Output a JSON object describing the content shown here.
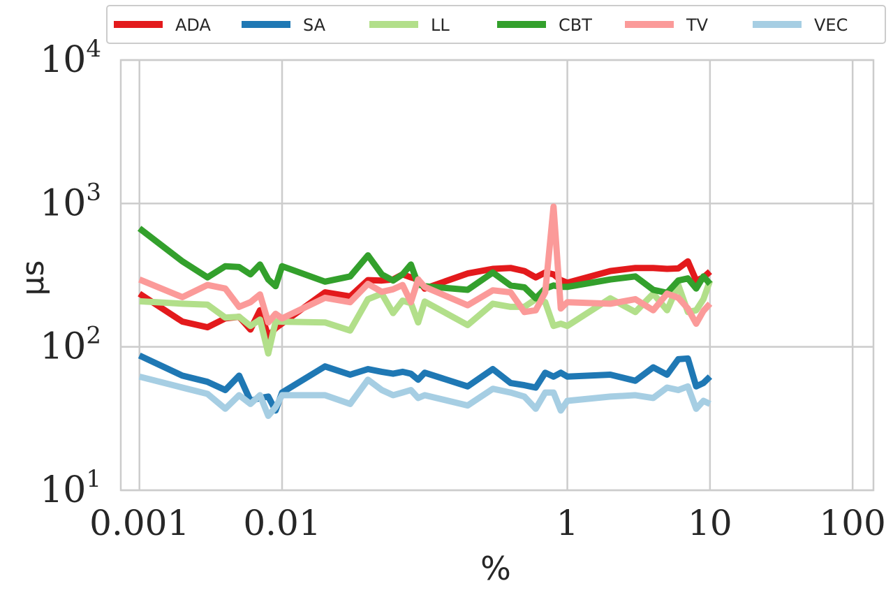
{
  "chart_data": {
    "type": "line",
    "title": "",
    "xlabel": "%",
    "ylabel": "µs",
    "x_scale": "log",
    "y_scale": "log",
    "xlim": [
      0.00074,
      140
    ],
    "ylim": [
      10,
      10000
    ],
    "x_ticks": [
      {
        "value": 0.001,
        "label": "0.001"
      },
      {
        "value": 0.01,
        "label": "0.01"
      },
      {
        "value": 1,
        "label": "1"
      },
      {
        "value": 10,
        "label": "10"
      },
      {
        "value": 100,
        "label": "100"
      }
    ],
    "y_ticks": [
      {
        "value": 10,
        "base": "10",
        "exp": "1"
      },
      {
        "value": 100,
        "base": "10",
        "exp": "2"
      },
      {
        "value": 1000,
        "base": "10",
        "exp": "3"
      },
      {
        "value": 10000,
        "base": "10",
        "exp": "4"
      }
    ],
    "grid": true,
    "legend_position": "top",
    "series": [
      {
        "name": "ADA",
        "color": "#e31a1c",
        "points": [
          [
            0.001,
            235
          ],
          [
            0.002,
            150
          ],
          [
            0.003,
            137
          ],
          [
            0.004,
            158
          ],
          [
            0.005,
            162
          ],
          [
            0.006,
            132
          ],
          [
            0.007,
            180
          ],
          [
            0.008,
            118
          ],
          [
            0.009,
            135
          ],
          [
            0.02,
            240
          ],
          [
            0.03,
            225
          ],
          [
            0.04,
            292
          ],
          [
            0.05,
            290
          ],
          [
            0.06,
            295
          ],
          [
            0.07,
            320
          ],
          [
            0.08,
            305
          ],
          [
            0.09,
            295
          ],
          [
            0.1,
            255
          ],
          [
            0.2,
            325
          ],
          [
            0.3,
            350
          ],
          [
            0.4,
            355
          ],
          [
            0.5,
            338
          ],
          [
            0.6,
            305
          ],
          [
            0.7,
            330
          ],
          [
            0.8,
            320
          ],
          [
            0.9,
            292
          ],
          [
            1,
            280
          ],
          [
            2,
            338
          ],
          [
            3,
            355
          ],
          [
            4,
            355
          ],
          [
            5,
            350
          ],
          [
            6,
            352
          ],
          [
            7,
            395
          ],
          [
            8,
            290
          ],
          [
            9,
            305
          ],
          [
            10,
            335
          ]
        ]
      },
      {
        "name": "SA",
        "color": "#1f78b4",
        "points": [
          [
            0.001,
            87
          ],
          [
            0.002,
            63
          ],
          [
            0.003,
            57
          ],
          [
            0.004,
            50
          ],
          [
            0.005,
            63
          ],
          [
            0.006,
            42
          ],
          [
            0.007,
            44
          ],
          [
            0.008,
            45
          ],
          [
            0.009,
            36
          ],
          [
            0.01,
            48
          ],
          [
            0.02,
            73
          ],
          [
            0.03,
            64
          ],
          [
            0.04,
            70
          ],
          [
            0.05,
            67
          ],
          [
            0.06,
            65
          ],
          [
            0.07,
            67
          ],
          [
            0.08,
            65
          ],
          [
            0.09,
            59
          ],
          [
            0.1,
            66
          ],
          [
            0.2,
            53
          ],
          [
            0.3,
            70
          ],
          [
            0.4,
            56
          ],
          [
            0.5,
            54
          ],
          [
            0.6,
            52
          ],
          [
            0.7,
            66
          ],
          [
            0.8,
            62
          ],
          [
            0.9,
            66
          ],
          [
            1,
            62
          ],
          [
            2,
            64
          ],
          [
            3,
            58
          ],
          [
            4,
            72
          ],
          [
            5,
            64
          ],
          [
            6,
            82
          ],
          [
            7,
            83
          ],
          [
            8,
            53
          ],
          [
            9,
            56
          ],
          [
            10,
            62
          ]
        ]
      },
      {
        "name": "LL",
        "color": "#b2df8a",
        "points": [
          [
            0.001,
            208
          ],
          [
            0.002,
            200
          ],
          [
            0.003,
            197
          ],
          [
            0.004,
            160
          ],
          [
            0.005,
            162
          ],
          [
            0.006,
            140
          ],
          [
            0.007,
            155
          ],
          [
            0.008,
            90
          ],
          [
            0.009,
            150
          ],
          [
            0.02,
            148
          ],
          [
            0.03,
            130
          ],
          [
            0.04,
            215
          ],
          [
            0.05,
            235
          ],
          [
            0.06,
            172
          ],
          [
            0.07,
            210
          ],
          [
            0.08,
            202
          ],
          [
            0.09,
            148
          ],
          [
            0.1,
            207
          ],
          [
            0.2,
            142
          ],
          [
            0.3,
            200
          ],
          [
            0.4,
            190
          ],
          [
            0.5,
            190
          ],
          [
            0.6,
            215
          ],
          [
            0.7,
            205
          ],
          [
            0.8,
            140
          ],
          [
            0.9,
            145
          ],
          [
            1,
            140
          ],
          [
            2,
            218
          ],
          [
            3,
            175
          ],
          [
            4,
            235
          ],
          [
            5,
            180
          ],
          [
            6,
            270
          ],
          [
            7,
            175
          ],
          [
            8,
            180
          ],
          [
            9,
            215
          ],
          [
            10,
            290
          ]
        ]
      },
      {
        "name": "CBT",
        "color": "#33a02c",
        "points": [
          [
            0.001,
            670
          ],
          [
            0.002,
            395
          ],
          [
            0.003,
            305
          ],
          [
            0.004,
            365
          ],
          [
            0.005,
            360
          ],
          [
            0.006,
            320
          ],
          [
            0.007,
            375
          ],
          [
            0.008,
            295
          ],
          [
            0.009,
            265
          ],
          [
            0.01,
            365
          ],
          [
            0.02,
            285
          ],
          [
            0.03,
            310
          ],
          [
            0.04,
            435
          ],
          [
            0.05,
            320
          ],
          [
            0.06,
            290
          ],
          [
            0.07,
            320
          ],
          [
            0.08,
            375
          ],
          [
            0.09,
            272
          ],
          [
            0.1,
            265
          ],
          [
            0.2,
            250
          ],
          [
            0.3,
            330
          ],
          [
            0.4,
            268
          ],
          [
            0.5,
            260
          ],
          [
            0.6,
            218
          ],
          [
            0.7,
            255
          ],
          [
            0.8,
            268
          ],
          [
            0.9,
            262
          ],
          [
            1,
            262
          ],
          [
            2,
            295
          ],
          [
            3,
            310
          ],
          [
            4,
            250
          ],
          [
            5,
            238
          ],
          [
            6,
            290
          ],
          [
            7,
            300
          ],
          [
            8,
            255
          ],
          [
            9,
            310
          ],
          [
            10,
            275
          ]
        ]
      },
      {
        "name": "TV",
        "color": "#fb9a99",
        "points": [
          [
            0.001,
            295
          ],
          [
            0.002,
            222
          ],
          [
            0.003,
            270
          ],
          [
            0.004,
            255
          ],
          [
            0.005,
            190
          ],
          [
            0.006,
            205
          ],
          [
            0.007,
            232
          ],
          [
            0.008,
            148
          ],
          [
            0.009,
            170
          ],
          [
            0.01,
            158
          ],
          [
            0.02,
            220
          ],
          [
            0.03,
            205
          ],
          [
            0.04,
            275
          ],
          [
            0.05,
            242
          ],
          [
            0.06,
            252
          ],
          [
            0.07,
            270
          ],
          [
            0.08,
            205
          ],
          [
            0.09,
            295
          ],
          [
            0.1,
            262
          ],
          [
            0.2,
            195
          ],
          [
            0.3,
            248
          ],
          [
            0.4,
            240
          ],
          [
            0.5,
            175
          ],
          [
            0.6,
            180
          ],
          [
            0.7,
            240
          ],
          [
            0.8,
            950
          ],
          [
            0.9,
            185
          ],
          [
            1,
            205
          ],
          [
            2,
            200
          ],
          [
            3,
            215
          ],
          [
            4,
            180
          ],
          [
            5,
            235
          ],
          [
            6,
            220
          ],
          [
            7,
            185
          ],
          [
            8,
            145
          ],
          [
            9,
            178
          ],
          [
            10,
            200
          ]
        ]
      },
      {
        "name": "VEC",
        "color": "#a6cee3",
        "points": [
          [
            0.001,
            62
          ],
          [
            0.002,
            52
          ],
          [
            0.003,
            47
          ],
          [
            0.004,
            37
          ],
          [
            0.005,
            46
          ],
          [
            0.006,
            40
          ],
          [
            0.007,
            46
          ],
          [
            0.008,
            33
          ],
          [
            0.009,
            38
          ],
          [
            0.01,
            46
          ],
          [
            0.02,
            46
          ],
          [
            0.03,
            40
          ],
          [
            0.04,
            59
          ],
          [
            0.05,
            50
          ],
          [
            0.06,
            46
          ],
          [
            0.07,
            48
          ],
          [
            0.08,
            50
          ],
          [
            0.09,
            44
          ],
          [
            0.1,
            46
          ],
          [
            0.2,
            39
          ],
          [
            0.3,
            51
          ],
          [
            0.4,
            48
          ],
          [
            0.5,
            45
          ],
          [
            0.6,
            37
          ],
          [
            0.7,
            48
          ],
          [
            0.8,
            48
          ],
          [
            0.9,
            36
          ],
          [
            1,
            42
          ],
          [
            2,
            45
          ],
          [
            3,
            46
          ],
          [
            4,
            44
          ],
          [
            5,
            52
          ],
          [
            6,
            50
          ],
          [
            7,
            53
          ],
          [
            8,
            37
          ],
          [
            9,
            42
          ],
          [
            10,
            40
          ]
        ]
      }
    ]
  }
}
